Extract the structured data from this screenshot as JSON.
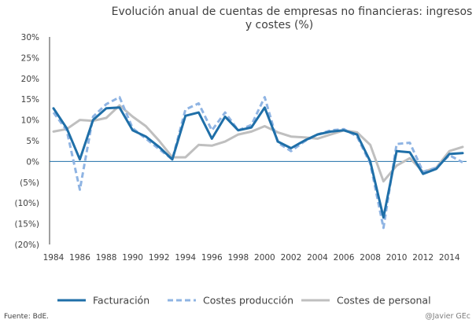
{
  "chart_data": {
    "type": "line",
    "title_lines": [
      "Evolución anual de cuentas de empresas no financieras: ingresos",
      "y costes (%)"
    ],
    "x": [
      1984,
      1985,
      1986,
      1987,
      1988,
      1989,
      1990,
      1991,
      1992,
      1993,
      1994,
      1995,
      1996,
      1997,
      1998,
      1999,
      2000,
      2001,
      2002,
      2003,
      2004,
      2005,
      2006,
      2007,
      2008,
      2009,
      2010,
      2011,
      2012,
      2013,
      2014,
      2015
    ],
    "x_tick_labels": [
      "1984",
      "1986",
      "1988",
      "1990",
      "1992",
      "1994",
      "1996",
      "1998",
      "2000",
      "2002",
      "2004",
      "2006",
      "2008",
      "2010",
      "2012",
      "2014"
    ],
    "y_tick_labels": [
      "30%",
      "25%",
      "20%",
      "15%",
      "10%",
      "5%",
      "0%",
      "(5%)",
      "(10%)",
      "(15%)",
      "(20%)"
    ],
    "ylim": [
      -20,
      30
    ],
    "y_ticks": [
      30,
      25,
      20,
      15,
      10,
      5,
      0,
      -5,
      -10,
      -15,
      -20
    ],
    "grid": false,
    "legend_position": "bottom",
    "series": [
      {
        "name": "Facturación",
        "color": "#1F6FA8",
        "style": "solid",
        "values": [
          12.8,
          8.0,
          0.5,
          10.0,
          12.8,
          13.0,
          7.5,
          6.0,
          3.5,
          0.5,
          11.0,
          11.8,
          5.5,
          10.8,
          7.5,
          8.2,
          13.0,
          4.8,
          3.2,
          5.0,
          6.5,
          7.2,
          7.5,
          6.5,
          0.0,
          -13.5,
          2.5,
          2.2,
          -3.0,
          -1.8,
          1.8,
          2.0
        ]
      },
      {
        "name": "Costes producción",
        "color": "#8FB4E3",
        "style": "dashed",
        "values": [
          11.8,
          7.5,
          -6.8,
          10.8,
          13.8,
          15.5,
          8.0,
          5.5,
          3.0,
          0.5,
          12.5,
          14.0,
          7.5,
          11.8,
          7.5,
          8.8,
          15.5,
          4.5,
          2.5,
          4.8,
          6.5,
          7.5,
          7.8,
          6.0,
          -0.5,
          -16.0,
          4.2,
          4.5,
          -2.5,
          -1.5,
          1.5,
          -0.2
        ]
      },
      {
        "name": "Costes de personal",
        "color": "#BFBFBF",
        "style": "solid",
        "values": [
          7.2,
          7.8,
          10.0,
          9.8,
          10.5,
          13.5,
          10.8,
          8.5,
          5.0,
          1.0,
          1.0,
          4.0,
          3.8,
          4.8,
          6.5,
          7.2,
          8.5,
          7.0,
          6.0,
          5.8,
          5.5,
          6.5,
          7.5,
          7.0,
          4.0,
          -4.8,
          -1.0,
          0.8,
          -2.5,
          -1.5,
          2.5,
          3.5
        ]
      }
    ]
  },
  "footer": {
    "source": "Fuente: BdE.",
    "credit": "@Javier GEc"
  }
}
